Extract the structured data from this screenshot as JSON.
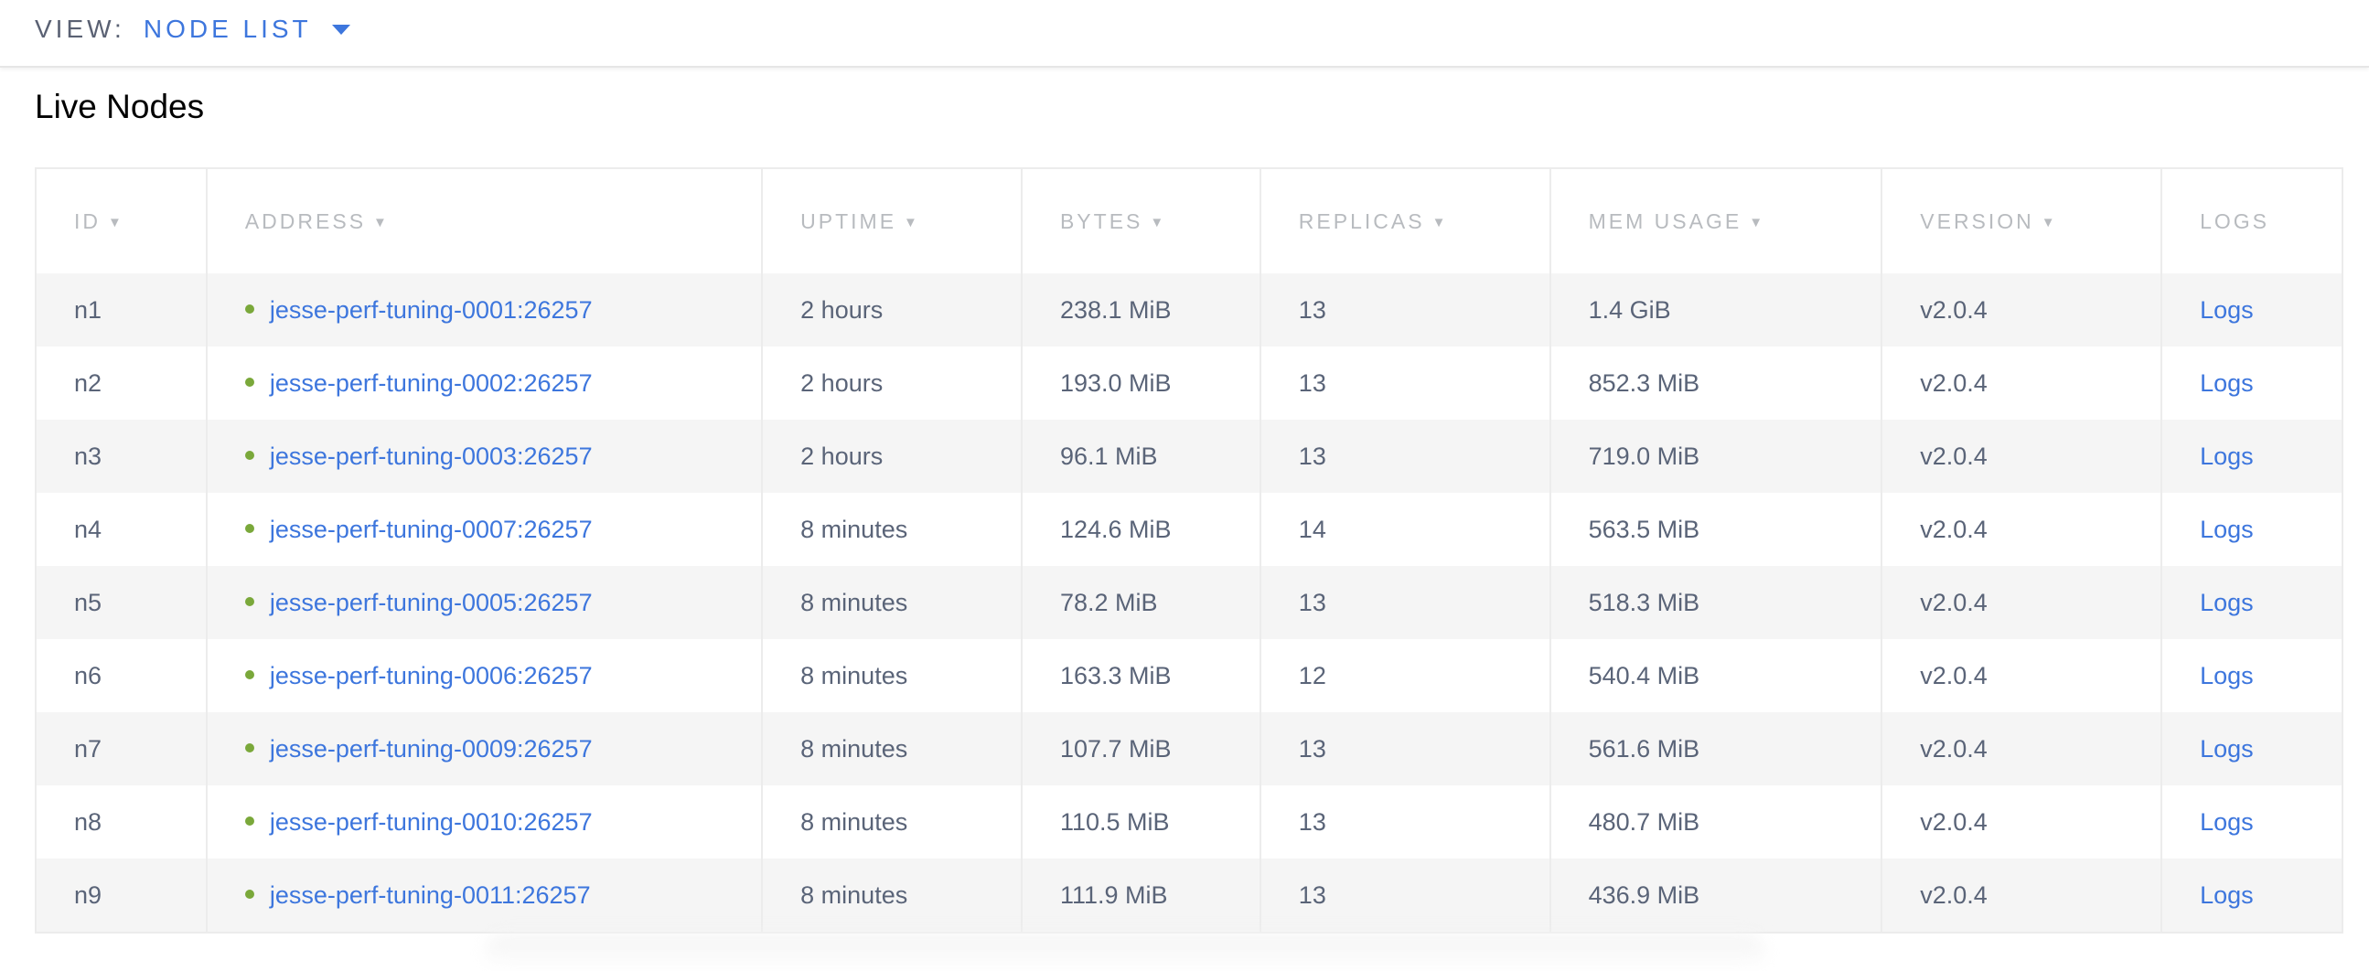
{
  "view": {
    "label": "VIEW:",
    "selected": "NODE LIST"
  },
  "title": "Live Nodes",
  "columns": [
    {
      "label": "ID",
      "sortable": true
    },
    {
      "label": "ADDRESS",
      "sortable": true
    },
    {
      "label": "UPTIME",
      "sortable": true
    },
    {
      "label": "BYTES",
      "sortable": true
    },
    {
      "label": "REPLICAS",
      "sortable": true
    },
    {
      "label": "MEM USAGE",
      "sortable": true
    },
    {
      "label": "VERSION",
      "sortable": true
    },
    {
      "label": "LOGS",
      "sortable": false
    }
  ],
  "sort_icon": "▼",
  "rows": [
    {
      "id": "n1",
      "address": "jesse-perf-tuning-0001:26257",
      "uptime": "2 hours",
      "bytes": "238.1 MiB",
      "replicas": "13",
      "mem": "1.4 GiB",
      "version": "v2.0.4",
      "logs": "Logs"
    },
    {
      "id": "n2",
      "address": "jesse-perf-tuning-0002:26257",
      "uptime": "2 hours",
      "bytes": "193.0 MiB",
      "replicas": "13",
      "mem": "852.3 MiB",
      "version": "v2.0.4",
      "logs": "Logs"
    },
    {
      "id": "n3",
      "address": "jesse-perf-tuning-0003:26257",
      "uptime": "2 hours",
      "bytes": "96.1 MiB",
      "replicas": "13",
      "mem": "719.0 MiB",
      "version": "v2.0.4",
      "logs": "Logs"
    },
    {
      "id": "n4",
      "address": "jesse-perf-tuning-0007:26257",
      "uptime": "8 minutes",
      "bytes": "124.6 MiB",
      "replicas": "14",
      "mem": "563.5 MiB",
      "version": "v2.0.4",
      "logs": "Logs"
    },
    {
      "id": "n5",
      "address": "jesse-perf-tuning-0005:26257",
      "uptime": "8 minutes",
      "bytes": "78.2 MiB",
      "replicas": "13",
      "mem": "518.3 MiB",
      "version": "v2.0.4",
      "logs": "Logs"
    },
    {
      "id": "n6",
      "address": "jesse-perf-tuning-0006:26257",
      "uptime": "8 minutes",
      "bytes": "163.3 MiB",
      "replicas": "12",
      "mem": "540.4 MiB",
      "version": "v2.0.4",
      "logs": "Logs"
    },
    {
      "id": "n7",
      "address": "jesse-perf-tuning-0009:26257",
      "uptime": "8 minutes",
      "bytes": "107.7 MiB",
      "replicas": "13",
      "mem": "561.6 MiB",
      "version": "v2.0.4",
      "logs": "Logs"
    },
    {
      "id": "n8",
      "address": "jesse-perf-tuning-0010:26257",
      "uptime": "8 minutes",
      "bytes": "110.5 MiB",
      "replicas": "13",
      "mem": "480.7 MiB",
      "version": "v2.0.4",
      "logs": "Logs"
    },
    {
      "id": "n9",
      "address": "jesse-perf-tuning-0011:26257",
      "uptime": "8 minutes",
      "bytes": "111.9 MiB",
      "replicas": "13",
      "mem": "436.9 MiB",
      "version": "v2.0.4",
      "logs": "Logs"
    }
  ],
  "colors": {
    "accent": "#3d76dd",
    "status_live": "#7aa83a",
    "stripe": "#f5f5f5",
    "text": "#5a6478",
    "header_text": "#b8bbbf"
  }
}
